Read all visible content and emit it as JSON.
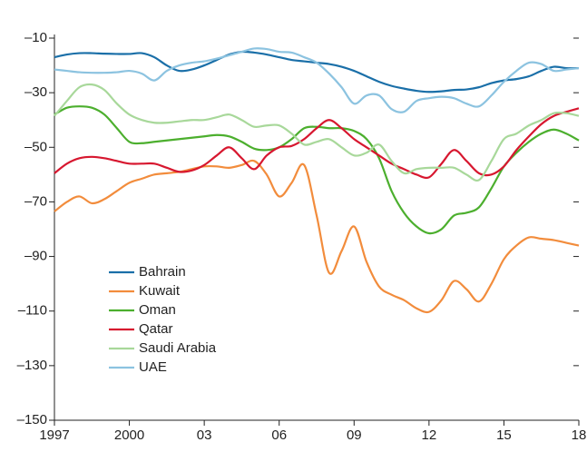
{
  "chart_data": {
    "type": "line",
    "x": [
      1997,
      1997.5,
      1998,
      1998.5,
      1999,
      1999.5,
      2000,
      2000.5,
      2001,
      2001.5,
      2002,
      2002.5,
      2003,
      2003.5,
      2004,
      2004.5,
      2005,
      2005.5,
      2006,
      2006.5,
      2007,
      2007.5,
      2008,
      2008.5,
      2009,
      2009.5,
      2010,
      2010.5,
      2011,
      2011.5,
      2012,
      2012.5,
      2013,
      2013.5,
      2014,
      2014.5,
      2015,
      2015.5,
      2016,
      2016.5,
      2017,
      2017.5,
      2018
    ],
    "series": [
      {
        "name": "Bahrain",
        "color": "#1a6fa8",
        "values": [
          -17,
          -16,
          -15.5,
          -15.5,
          -15.7,
          -15.8,
          -15.8,
          -15.5,
          -17,
          -20,
          -22,
          -21.5,
          -20,
          -18,
          -16,
          -15,
          -15.3,
          -16,
          -17,
          -18,
          -18.5,
          -19,
          -19.5,
          -20.5,
          -22,
          -24,
          -26,
          -27.5,
          -28.5,
          -29.3,
          -29.7,
          -29.5,
          -29,
          -28.8,
          -28,
          -26.5,
          -25.5,
          -25,
          -24,
          -22,
          -20.5,
          -21,
          -21
        ]
      },
      {
        "name": "Kuwait",
        "color": "#f28c3c",
        "values": [
          -73.5,
          -70,
          -68,
          -70.5,
          -69,
          -66,
          -63,
          -61.5,
          -60,
          -59.5,
          -59,
          -58,
          -57,
          -57,
          -57.5,
          -56.5,
          -55,
          -60,
          -68,
          -63,
          -56.5,
          -75,
          -96,
          -88,
          -79,
          -92,
          -101,
          -104,
          -106,
          -109,
          -110.3,
          -106,
          -99,
          -102,
          -106.5,
          -100,
          -91,
          -86,
          -83,
          -83.5,
          -84,
          -85,
          -86
        ]
      },
      {
        "name": "Oman",
        "color": "#4caf2e",
        "values": [
          -38,
          -35.5,
          -35,
          -35.5,
          -38,
          -43,
          -48,
          -48.5,
          -48,
          -47.5,
          -47,
          -46.5,
          -46,
          -45.5,
          -46,
          -48,
          -50.5,
          -51,
          -50,
          -47,
          -43,
          -42.5,
          -43,
          -43,
          -44,
          -47,
          -54,
          -66,
          -74,
          -79,
          -81.5,
          -80,
          -75,
          -74,
          -72,
          -65,
          -57,
          -52,
          -48,
          -45,
          -43.5,
          -45,
          -47.5
        ]
      },
      {
        "name": "Qatar",
        "color": "#d7172f",
        "values": [
          -59.5,
          -56,
          -54,
          -53.5,
          -54,
          -55,
          -56,
          -56,
          -56,
          -57.5,
          -59,
          -58.5,
          -56.5,
          -53,
          -50,
          -54,
          -58,
          -53,
          -50,
          -49.5,
          -47,
          -43,
          -40,
          -43,
          -47,
          -50,
          -53,
          -56,
          -58,
          -60,
          -61,
          -56,
          -51,
          -55,
          -59.5,
          -60,
          -57,
          -51,
          -46,
          -41.5,
          -38.5,
          -37,
          -35.7
        ]
      },
      {
        "name": "Saudi Arabia",
        "color": "#a8d89a",
        "values": [
          -38.5,
          -33,
          -28,
          -27,
          -29,
          -34,
          -38,
          -40,
          -41,
          -41,
          -40.5,
          -40,
          -40,
          -39,
          -38,
          -40,
          -42.5,
          -42,
          -42,
          -45,
          -49,
          -48,
          -47,
          -50,
          -53,
          -52,
          -49,
          -55,
          -59.5,
          -58,
          -57.5,
          -57.5,
          -57.5,
          -60,
          -62,
          -55,
          -47,
          -45,
          -42,
          -40,
          -37.5,
          -37.5,
          -38.5
        ]
      },
      {
        "name": "UAE",
        "color": "#8cc3e0",
        "values": [
          -21.5,
          -22,
          -22.5,
          -22.7,
          -22.7,
          -22.5,
          -22,
          -23,
          -25.5,
          -22,
          -20,
          -19,
          -18.5,
          -17.5,
          -16.3,
          -15,
          -13.8,
          -14,
          -15,
          -15.3,
          -17,
          -19,
          -23,
          -28,
          -34,
          -31,
          -31,
          -36,
          -37,
          -33,
          -32,
          -31.5,
          -32,
          -34,
          -35,
          -31,
          -26,
          -22,
          -19,
          -19.5,
          -22,
          -21.5,
          -21
        ]
      }
    ],
    "xlim": [
      1997,
      2018
    ],
    "xticks": [
      1997,
      2000,
      {
        "value": 2003,
        "label": "03"
      },
      {
        "value": 2006,
        "label": "06"
      },
      {
        "value": 2009,
        "label": "09"
      },
      {
        "value": 2012,
        "label": "12"
      },
      {
        "value": 2015,
        "label": "15"
      },
      {
        "value": 2018,
        "label": "18"
      }
    ],
    "ylim": [
      -150,
      -10
    ],
    "yticks": [
      {
        "value": -150,
        "label": "–150"
      },
      {
        "value": -130,
        "label": "–130"
      },
      {
        "value": -110,
        "label": "–110"
      },
      {
        "value": -90,
        "label": "–90"
      },
      {
        "value": -70,
        "label": "–70"
      },
      {
        "value": -50,
        "label": "–50"
      },
      {
        "value": -30,
        "label": "–30"
      },
      {
        "value": -10,
        "label": "–10"
      }
    ],
    "legend": "lower left"
  }
}
